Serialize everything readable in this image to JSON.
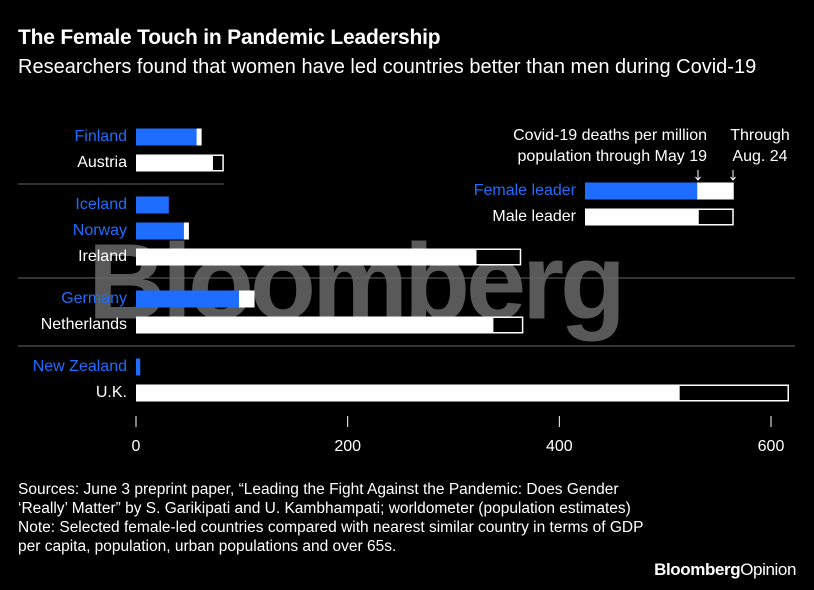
{
  "chart_data": {
    "type": "bar",
    "orientation": "horizontal",
    "title": "The Female Touch in Pandemic Leadership",
    "subtitle": "Researchers found that women have led countries better than men during Covid-19",
    "categories": [
      "Finland",
      "Austria",
      "Iceland",
      "Norway",
      "Ireland",
      "Germany",
      "Netherlands",
      "New Zealand",
      "U.K."
    ],
    "series": [
      {
        "name": [
          "Covid-19 deaths per million",
          "population through May 19"
        ],
        "values": [
          58,
          72,
          31,
          46,
          321,
          98,
          337,
          4,
          513
        ]
      },
      {
        "name": [
          "Through",
          "Aug. 24"
        ],
        "values": [
          4,
          11,
          0,
          4,
          43,
          14,
          29,
          0,
          104
        ]
      }
    ],
    "leaders": [
      {
        "name": "Female leader",
        "color": "#1f6dff",
        "countries": [
          "Finland",
          "Iceland",
          "Norway",
          "Germany",
          "New Zealand"
        ]
      },
      {
        "name": "Male leader",
        "color": "#ffffff",
        "countries": [
          "Austria",
          "Ireland",
          "Netherlands",
          "U.K."
        ]
      }
    ],
    "xlim": [
      0,
      620
    ],
    "xticks": [
      0,
      200,
      400,
      600
    ],
    "watermark": "Bloomberg",
    "sources": "Sources: June 3 preprint paper, “Leading the Fight Against the Pandemic: Does Gender ‘Really’ Matter” by S. Garikipati and U. Kambhampati; worldometer (population estimates)",
    "note": "Note: Selected female-led countries compared with nearest similar country in terms of GDP per capita, population, urban populations and over 65s.",
    "logo": [
      "Bloomberg",
      "Opinion"
    ]
  }
}
